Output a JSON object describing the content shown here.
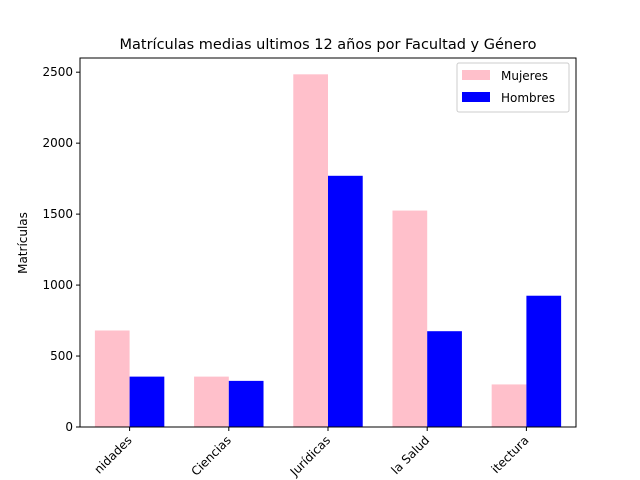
{
  "chart_data": {
    "type": "bar",
    "title": "Matrículas medias ultimos 12 años por Facultad y Género",
    "xlabel": "",
    "ylabel": "Matrículas",
    "categories": [
      "Artes y Humanidades",
      "Ciencias",
      "Ciencias Sociales y Jurídicas",
      "Ciencias de la Salud",
      "Ingeniería y Arquitectura"
    ],
    "visible_tick_labels": [
      "nidades",
      "Ciencias",
      "Jurídicas",
      "la Salud",
      "itectura"
    ],
    "series": [
      {
        "name": "Mujeres",
        "color": "#ffc0cb",
        "values": [
          680,
          355,
          2485,
          1525,
          300
        ]
      },
      {
        "name": "Hombres",
        "color": "#0000ff",
        "values": [
          355,
          325,
          1770,
          675,
          925
        ]
      }
    ],
    "ylim": [
      0,
      2600
    ],
    "yticks": [
      0,
      500,
      1000,
      1500,
      2000,
      2500
    ],
    "grid": false,
    "legend_position": "top-right"
  }
}
